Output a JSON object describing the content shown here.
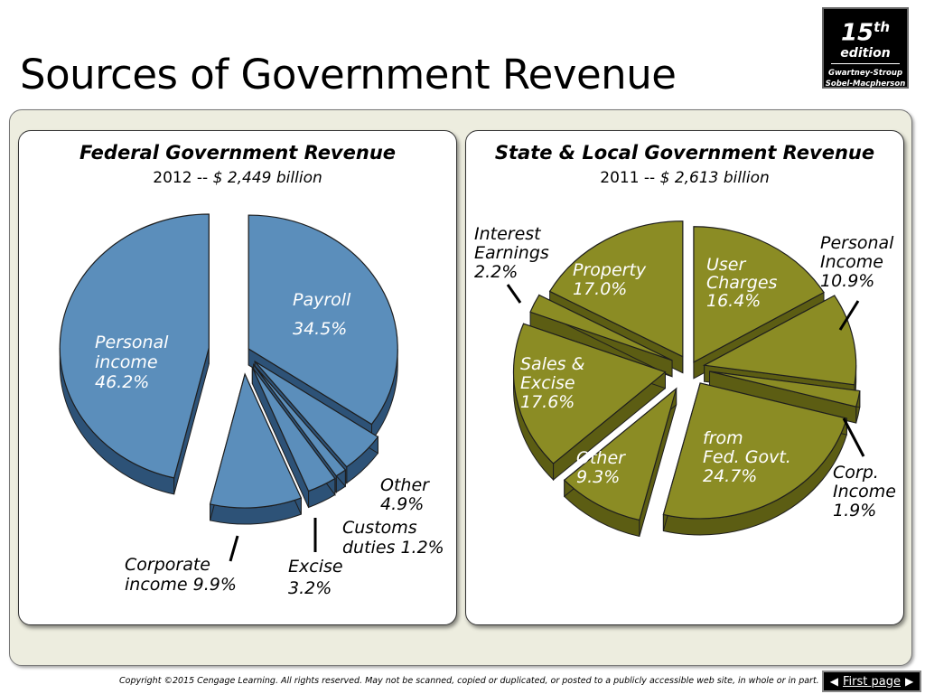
{
  "slide": {
    "title": "Sources of Government Revenue"
  },
  "badge": {
    "edition_number": "15",
    "edition_suffix": "th",
    "edition_word": "edition",
    "authors_line1": "Gwartney-Stroup",
    "authors_line2": "Sobel-Macpherson"
  },
  "federal_chart": {
    "title": "Federal Government Revenue",
    "year_text": "2012 -- ",
    "amount_text": "$ 2,449 billion"
  },
  "state_chart": {
    "title": "State & Local Government Revenue",
    "year_text": "2011 -- ",
    "amount_text": "$ 2,613 billion"
  },
  "footer": {
    "copyright": "Copyright ©2015 Cengage Learning. All rights reserved. May not be scanned, copied or duplicated, or posted to a publicly accessible web site, in whole or in part.",
    "first_page_label": "First page"
  },
  "colors": {
    "federal_top": "#5b8ebb",
    "federal_side": "#2d5277",
    "state_top": "#8b8c24",
    "state_side": "#5c5d13"
  },
  "chart_data": [
    {
      "type": "pie",
      "title": "Federal Government Revenue",
      "subtitle": "2012 -- $ 2,449 billion",
      "slices": [
        {
          "label": "Payroll",
          "value": 34.5,
          "text_lines": [
            "Payroll",
            "34.5%"
          ]
        },
        {
          "label": "Other",
          "value": 4.9,
          "text_lines": [
            "Other",
            "4.9%"
          ]
        },
        {
          "label": "Customs duties",
          "value": 1.2,
          "text_lines": [
            "Customs",
            "duties 1.2%"
          ]
        },
        {
          "label": "Excise",
          "value": 3.2,
          "text_lines": [
            "Excise",
            "3.2%"
          ]
        },
        {
          "label": "Corporate income",
          "value": 9.9,
          "text_lines": [
            "Corporate",
            "income 9.9%"
          ]
        },
        {
          "label": "Personal income",
          "value": 46.2,
          "text_lines": [
            "Personal",
            "income",
            "46.2%"
          ]
        }
      ]
    },
    {
      "type": "pie",
      "title": "State & Local Government Revenue",
      "subtitle": "2011 -- $ 2,613 billion",
      "slices": [
        {
          "label": "User Charges",
          "value": 16.4,
          "text_lines": [
            "User",
            "Charges",
            "16.4%"
          ]
        },
        {
          "label": "Personal Income",
          "value": 10.9,
          "text_lines": [
            "Personal",
            "Income",
            "10.9%"
          ]
        },
        {
          "label": "Corp. Income",
          "value": 1.9,
          "text_lines": [
            "Corp.",
            "Income",
            "1.9%"
          ]
        },
        {
          "label": "from Fed. Govt.",
          "value": 24.7,
          "text_lines": [
            "from",
            "Fed. Govt.",
            "24.7%"
          ]
        },
        {
          "label": "Other",
          "value": 9.3,
          "text_lines": [
            "Other",
            "9.3%"
          ]
        },
        {
          "label": "Sales & Excise",
          "value": 17.6,
          "text_lines": [
            "Sales &",
            "Excise",
            "17.6%"
          ]
        },
        {
          "label": "Interest Earnings",
          "value": 2.2,
          "text_lines": [
            "Interest",
            "Earnings",
            "2.2%"
          ]
        },
        {
          "label": "Property",
          "value": 17.0,
          "text_lines": [
            "Property",
            "17.0%"
          ]
        }
      ]
    }
  ]
}
